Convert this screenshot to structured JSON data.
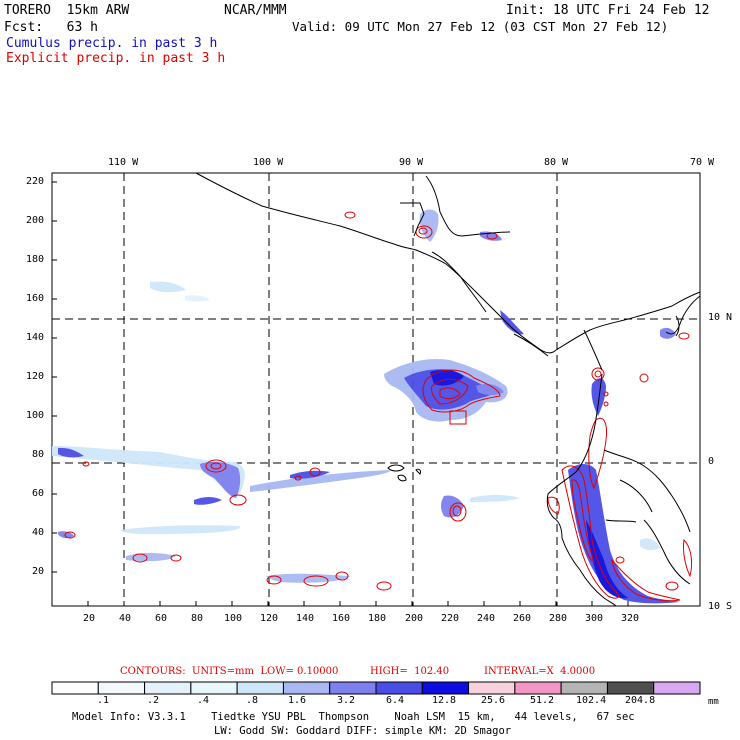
{
  "header": {
    "model": "TORERO  15km ARW",
    "org": "NCAR/MMM",
    "init": "Init: 18 UTC Fri 24 Feb 12",
    "fcst": "Fcst:   63 h",
    "valid": "Valid: 09 UTC Mon 27 Feb 12 (03 CST Mon 27 Feb 12)",
    "field1": "Cumulus precip. in past 3 h",
    "field2": "Explicit precip. in past 3 h"
  },
  "axes": {
    "lon_labels": [
      "110 W",
      "100 W",
      "90 W",
      "80 W",
      "70 W"
    ],
    "lat_labels": [
      "10 N",
      "0",
      "10 S"
    ],
    "x_ticks": [
      "20",
      "40",
      "60",
      "80",
      "100",
      "120",
      "140",
      "160",
      "180",
      "200",
      "220",
      "240",
      "260",
      "280",
      "300",
      "320"
    ],
    "y_ticks": [
      "220",
      "200",
      "180",
      "160",
      "140",
      "120",
      "100",
      "80",
      "60",
      "40",
      "20"
    ]
  },
  "contours": {
    "prefix": "CONTOURS:  UNITS=mm  LOW= 0.10000",
    "high": "HIGH=  102.40",
    "interval": "INTERVAL=X  4.0000"
  },
  "colorbar": {
    "labels": [
      ".1",
      ".2",
      ".4",
      ".8",
      "1.6",
      "3.2",
      "6.4",
      "12.8",
      "25.6",
      "51.2",
      "102.4",
      "204.8"
    ],
    "unit": "mm",
    "colors": [
      "#ffffff",
      "#f2f8fc",
      "#e4f1fb",
      "#e9f7fb",
      "#cfe7fa",
      "#a9b8f3",
      "#7d80ee",
      "#4a4ee6",
      "#0c0ce0",
      "#f7d2dd",
      "#f297c7",
      "#b4b4b4",
      "#505050",
      "#d8a8f0"
    ]
  },
  "footer": {
    "line1": "Model Info: V3.3.1    Tiedtke YSU PBL  Thompson    Noah LSM  15 km,   44 levels,   67 sec",
    "line2": "LW: Godd SW: Goddard DIFF: simple KM: 2D Smagor"
  }
}
